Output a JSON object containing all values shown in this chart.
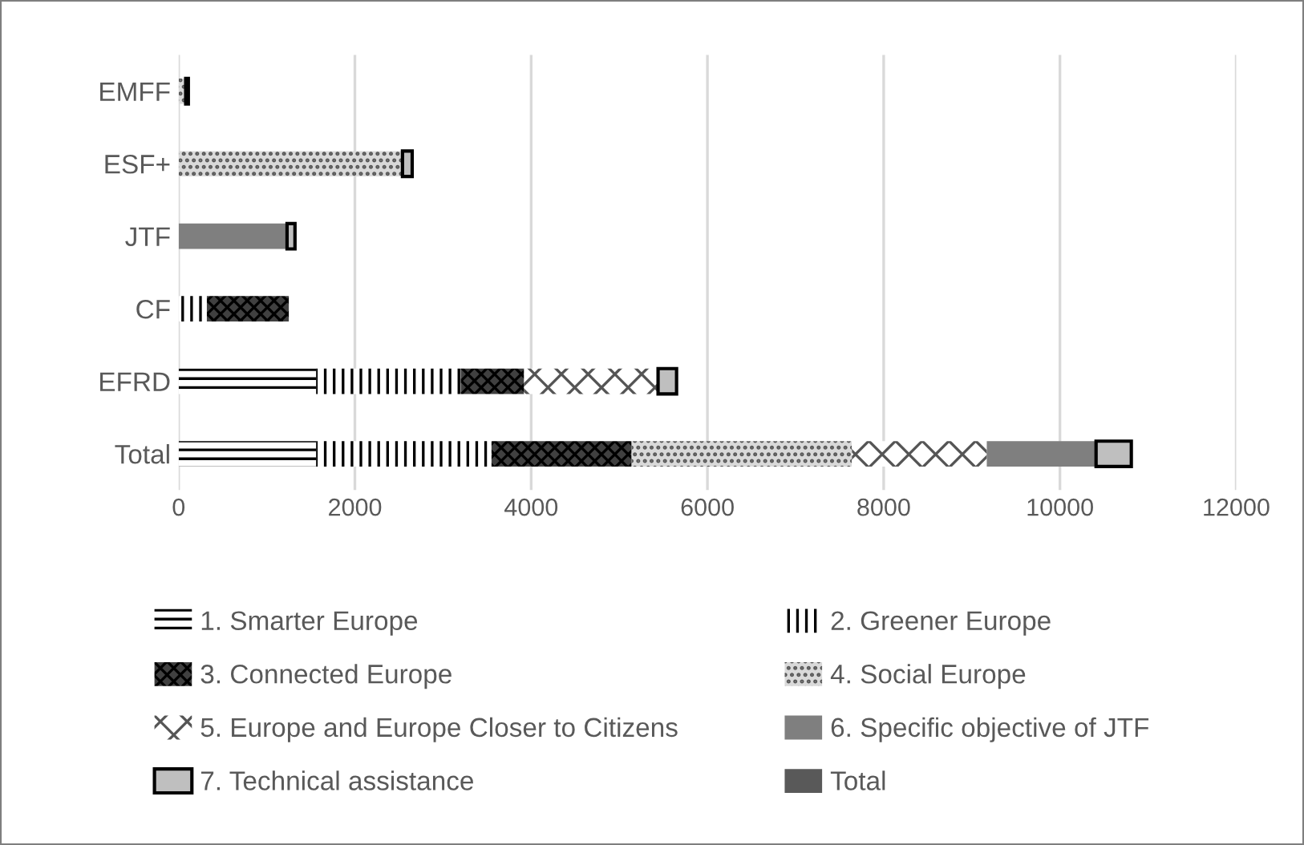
{
  "chart_data": {
    "type": "bar",
    "orientation": "horizontal",
    "stacked": true,
    "categories": [
      "EMFF",
      "ESF+",
      "JTF",
      "CF",
      "EFRD",
      "Total"
    ],
    "series": [
      {
        "name": "1. Smarter Europe",
        "color": "#ffffff",
        "values": [
          null,
          null,
          null,
          null,
          1560,
          1560
        ]
      },
      {
        "name": "2. Greener Europe",
        "color": "#ffffff",
        "values": [
          null,
          null,
          null,
          320,
          1640,
          1990
        ]
      },
      {
        "name": "3. Connected Europe",
        "color": "#404040",
        "values": [
          null,
          null,
          null,
          930,
          720,
          1590
        ]
      },
      {
        "name": "4. Social Europe",
        "color": "#d9d9d9",
        "values": [
          80,
          2540,
          null,
          null,
          null,
          2500
        ]
      },
      {
        "name": "5. Europe and Europe Closer to Citizens",
        "color": "#ffffff",
        "values": [
          null,
          null,
          null,
          null,
          1520,
          1530
        ]
      },
      {
        "name": "6. Specific objective of JTF",
        "color": "#7f7f7f",
        "values": [
          null,
          null,
          1230,
          null,
          null,
          1240
        ]
      },
      {
        "name": "7. Technical assistance",
        "color": "#bfbfbf",
        "values": [
          30,
          110,
          90,
          null,
          210,
          400
        ]
      },
      {
        "name": "Total",
        "color": "#595959",
        "values": [
          null,
          null,
          null,
          null,
          null,
          null
        ]
      }
    ],
    "xlim": [
      0,
      12000
    ],
    "xticks": [
      0,
      2000,
      4000,
      6000,
      8000,
      10000,
      12000
    ],
    "grid": "x",
    "legend": "bottom"
  }
}
